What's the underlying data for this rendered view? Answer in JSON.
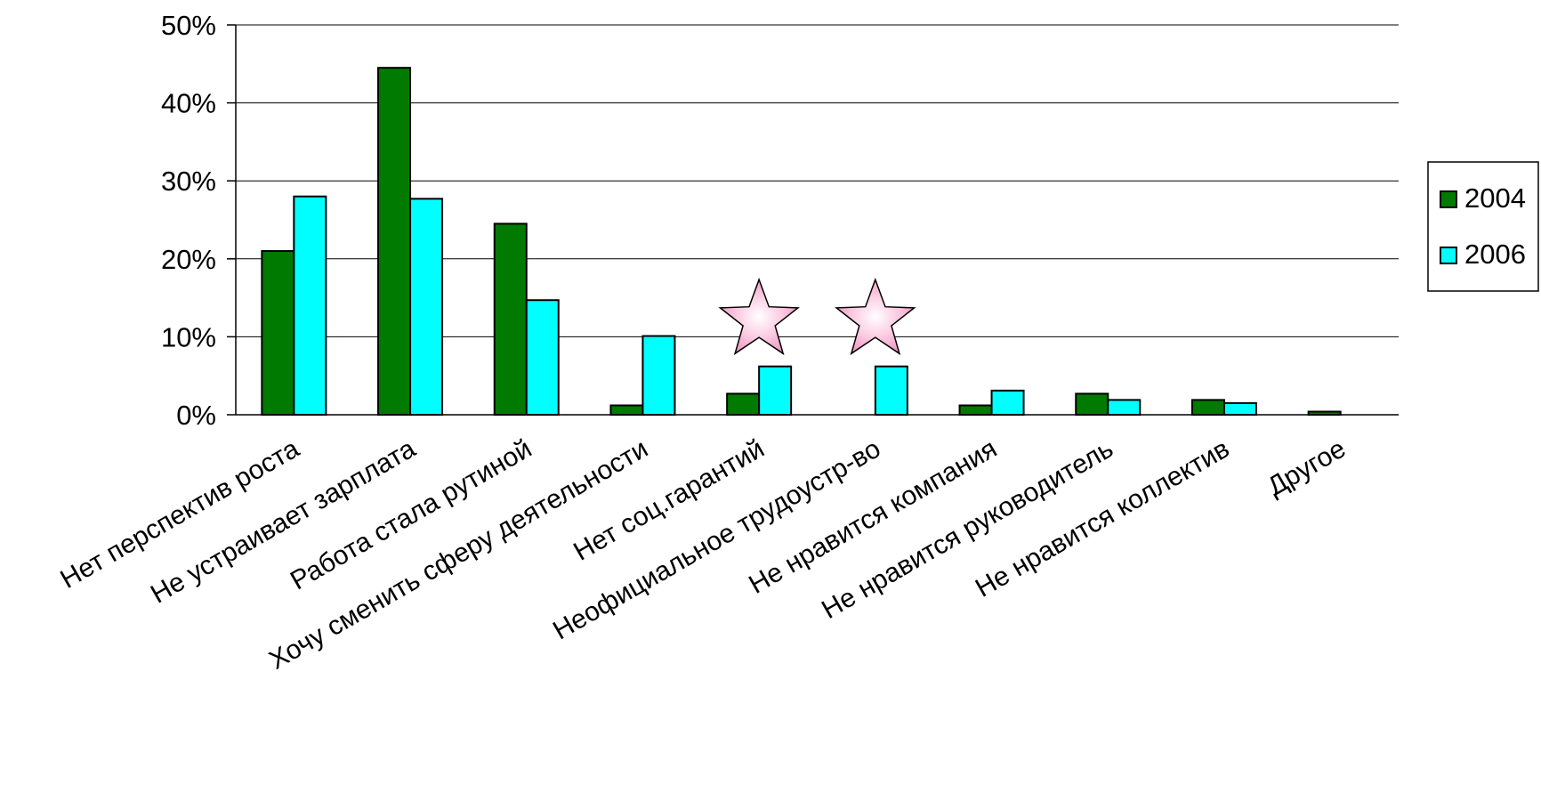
{
  "chart_data": {
    "type": "bar",
    "title": "",
    "xlabel": "",
    "ylabel": "",
    "ylim": [
      0,
      50
    ],
    "y_ticks": [
      "0%",
      "10%",
      "20%",
      "30%",
      "40%",
      "50%"
    ],
    "y_tick_values": [
      0,
      10,
      20,
      30,
      40,
      50
    ],
    "grid": true,
    "legend_position": "right",
    "categories": [
      "Нет перспектив роста",
      "Не устраивает зарплата",
      "Работа стала рутиной",
      "Хочу сменить сферу деятельности",
      "Нет соц.гарантий",
      "Неофициальное трудоустр-во",
      "Не нравится компания",
      "Не нравится руководитель",
      "Не нравится коллектив",
      "Другое"
    ],
    "series": [
      {
        "name": "2004",
        "color": "#007a00",
        "values": [
          21,
          44.5,
          24.5,
          1.2,
          2.7,
          0,
          1.2,
          2.7,
          1.9,
          0.4
        ]
      },
      {
        "name": "2006",
        "color": "#00ffff",
        "values": [
          28,
          27.7,
          14.7,
          10.1,
          6.2,
          6.2,
          3.1,
          1.9,
          1.5,
          0
        ]
      }
    ],
    "annotations": [
      {
        "type": "star-icon",
        "category": "Нет соц.гарантий",
        "value": 13,
        "color": "#f7a8cd"
      },
      {
        "type": "star-icon",
        "category": "Неофициальное трудоустр-во",
        "value": 13,
        "color": "#f7a8cd"
      }
    ]
  }
}
